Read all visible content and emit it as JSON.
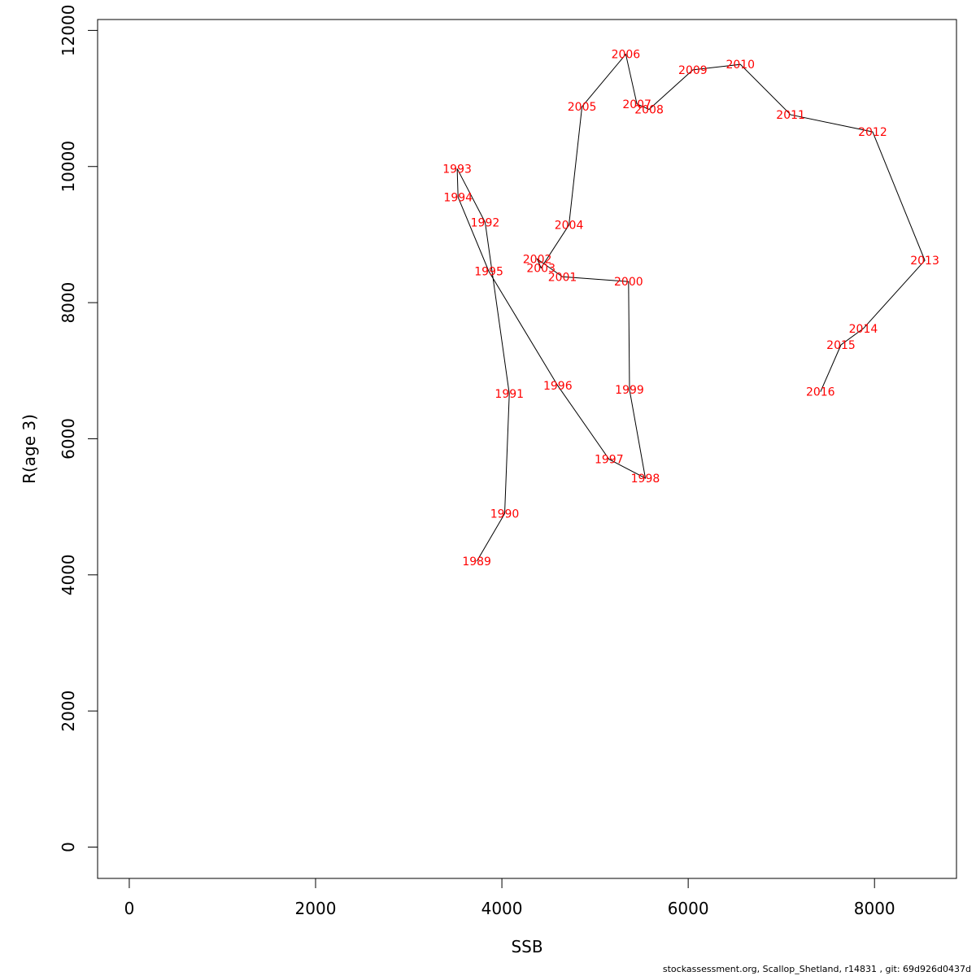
{
  "chart_data": {
    "type": "line",
    "xlabel": "SSB",
    "ylabel": "R(age 3)",
    "xlim": [
      -340,
      8880
    ],
    "ylim": [
      -460,
      12160
    ],
    "x_ticks": [
      "0",
      "2000",
      "4000",
      "6000",
      "8000"
    ],
    "y_ticks": [
      "0",
      "2000",
      "4000",
      "6000",
      "8000",
      "10000",
      "12000"
    ],
    "label_color": "#ff0000",
    "line_color": "#000000",
    "points": [
      {
        "label": "1989",
        "x": 3730,
        "y": 4200
      },
      {
        "label": "1990",
        "x": 4030,
        "y": 4900
      },
      {
        "label": "1991",
        "x": 4080,
        "y": 6660
      },
      {
        "label": "1992",
        "x": 3820,
        "y": 9180
      },
      {
        "label": "1993",
        "x": 3520,
        "y": 9970
      },
      {
        "label": "1994",
        "x": 3530,
        "y": 9550
      },
      {
        "label": "1995",
        "x": 3860,
        "y": 8460
      },
      {
        "label": "1996",
        "x": 4600,
        "y": 6780
      },
      {
        "label": "1997",
        "x": 5150,
        "y": 5700
      },
      {
        "label": "1998",
        "x": 5540,
        "y": 5420
      },
      {
        "label": "1999",
        "x": 5370,
        "y": 6720
      },
      {
        "label": "2000",
        "x": 5360,
        "y": 8310
      },
      {
        "label": "2001",
        "x": 4650,
        "y": 8380
      },
      {
        "label": "2002",
        "x": 4380,
        "y": 8640
      },
      {
        "label": "2003",
        "x": 4420,
        "y": 8510
      },
      {
        "label": "2004",
        "x": 4720,
        "y": 9140
      },
      {
        "label": "2005",
        "x": 4860,
        "y": 10880
      },
      {
        "label": "2006",
        "x": 5330,
        "y": 11650
      },
      {
        "label": "2007",
        "x": 5450,
        "y": 10920
      },
      {
        "label": "2008",
        "x": 5580,
        "y": 10840
      },
      {
        "label": "2009",
        "x": 6050,
        "y": 11420
      },
      {
        "label": "2010",
        "x": 6560,
        "y": 11500
      },
      {
        "label": "2011",
        "x": 7100,
        "y": 10760
      },
      {
        "label": "2012",
        "x": 7980,
        "y": 10510
      },
      {
        "label": "2013",
        "x": 8540,
        "y": 8620
      },
      {
        "label": "2014",
        "x": 7880,
        "y": 7620
      },
      {
        "label": "2015",
        "x": 7640,
        "y": 7380
      },
      {
        "label": "2016",
        "x": 7420,
        "y": 6690
      }
    ]
  },
  "footer": "stockassessment.org, Scallop_Shetland, r14831 , git: 69d926d0437d"
}
